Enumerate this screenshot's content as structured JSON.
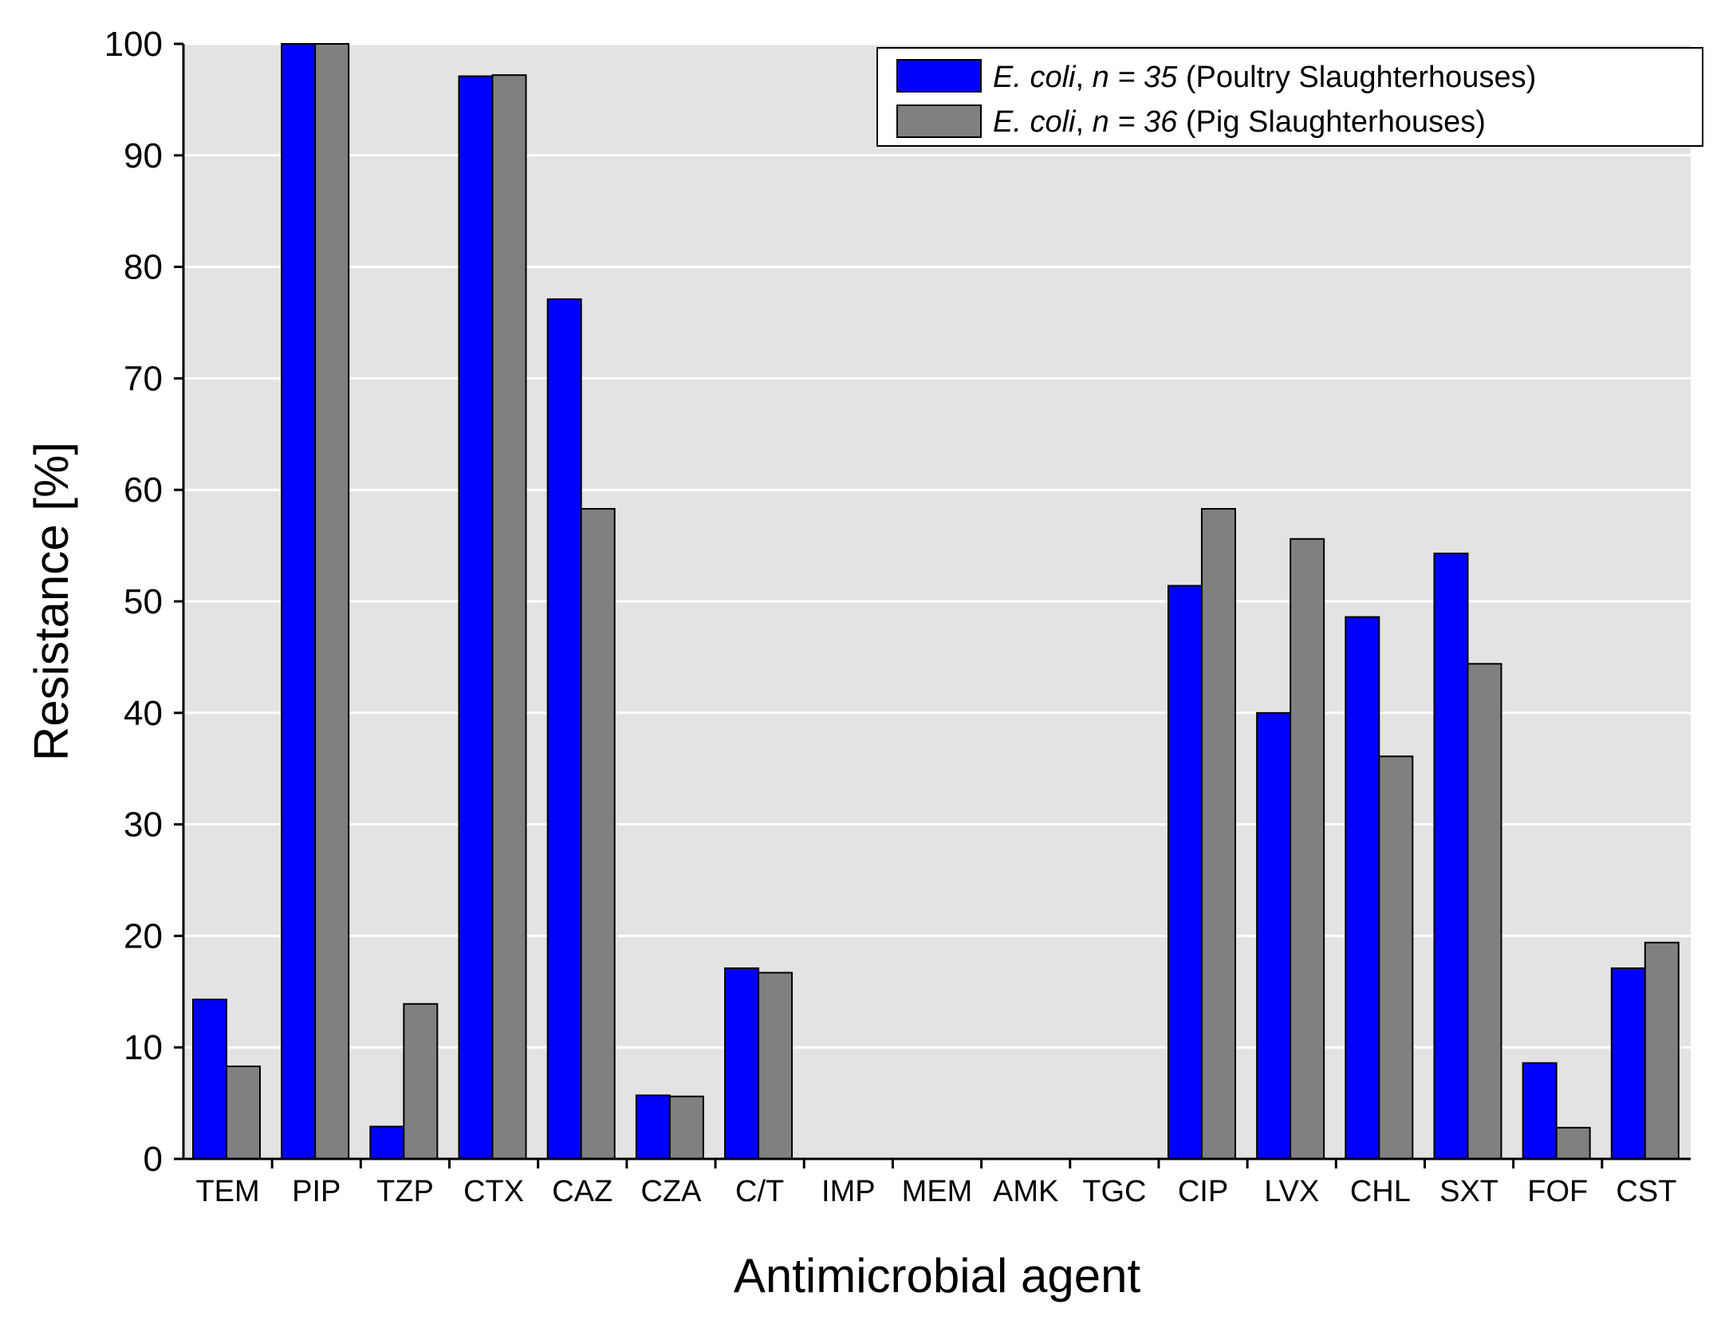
{
  "chart_data": {
    "type": "bar",
    "xlabel": "Antimicrobial agent",
    "ylabel": "Resistance [%]",
    "ylim": [
      0,
      100
    ],
    "yticks": [
      0,
      10,
      20,
      30,
      40,
      50,
      60,
      70,
      80,
      90,
      100
    ],
    "grid": true,
    "legend_position": "top-right",
    "categories": [
      "TEM",
      "PIP",
      "TZP",
      "CTX",
      "CAZ",
      "CZA",
      "C/T",
      "IMP",
      "MEM",
      "AMK",
      "TGC",
      "CIP",
      "LVX",
      "CHL",
      "SXT",
      "FOF",
      "CST"
    ],
    "series": [
      {
        "name": "E. coli, n = 35 (Poultry Slaughterhouses)",
        "legend_species": "E. coli",
        "legend_n": "n = 35",
        "legend_source": "(Poultry Slaughterhouses)",
        "color": "#0000ff",
        "values": [
          14.3,
          100,
          2.9,
          97.1,
          77.1,
          5.7,
          17.1,
          0,
          0,
          0,
          0,
          51.4,
          40.0,
          48.6,
          54.3,
          8.6,
          17.1
        ]
      },
      {
        "name": "E. coli, n = 36 (Pig Slaughterhouses)",
        "legend_species": "E. coli",
        "legend_n": "n = 36",
        "legend_source": "(Pig Slaughterhouses)",
        "color": "#808080",
        "values": [
          8.3,
          100,
          13.9,
          97.2,
          58.3,
          5.6,
          16.7,
          0,
          0,
          0,
          0,
          58.3,
          55.6,
          36.1,
          44.4,
          2.8,
          19.4
        ]
      }
    ]
  }
}
